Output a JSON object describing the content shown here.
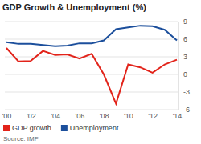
{
  "chart_data": {
    "type": "line",
    "title": "GDP Growth & Unemployment (%)",
    "source": "Source: IMF",
    "categories": [
      "'00",
      null,
      "'02",
      null,
      "'04",
      null,
      "'06",
      null,
      "'08",
      null,
      "'10",
      null,
      "'12",
      null,
      "'14"
    ],
    "series": [
      {
        "name": "GDP growth",
        "color": "#e2231a",
        "values": [
          4.5,
          2.2,
          2.3,
          4.0,
          3.3,
          3.4,
          2.7,
          3.5,
          0.0,
          -5.0,
          1.7,
          1.2,
          0.3,
          1.7,
          2.5
        ]
      },
      {
        "name": "Unemployment",
        "color": "#1c4f9c",
        "values": [
          5.5,
          5.2,
          5.2,
          5.0,
          4.8,
          4.9,
          5.3,
          5.3,
          5.8,
          7.7,
          8.0,
          8.3,
          8.2,
          7.6,
          5.8
        ]
      }
    ],
    "ylim": [
      -6,
      9
    ],
    "yticks": [
      -6,
      -3,
      0,
      3,
      6,
      9
    ],
    "grid": true,
    "legend": "bottom"
  }
}
